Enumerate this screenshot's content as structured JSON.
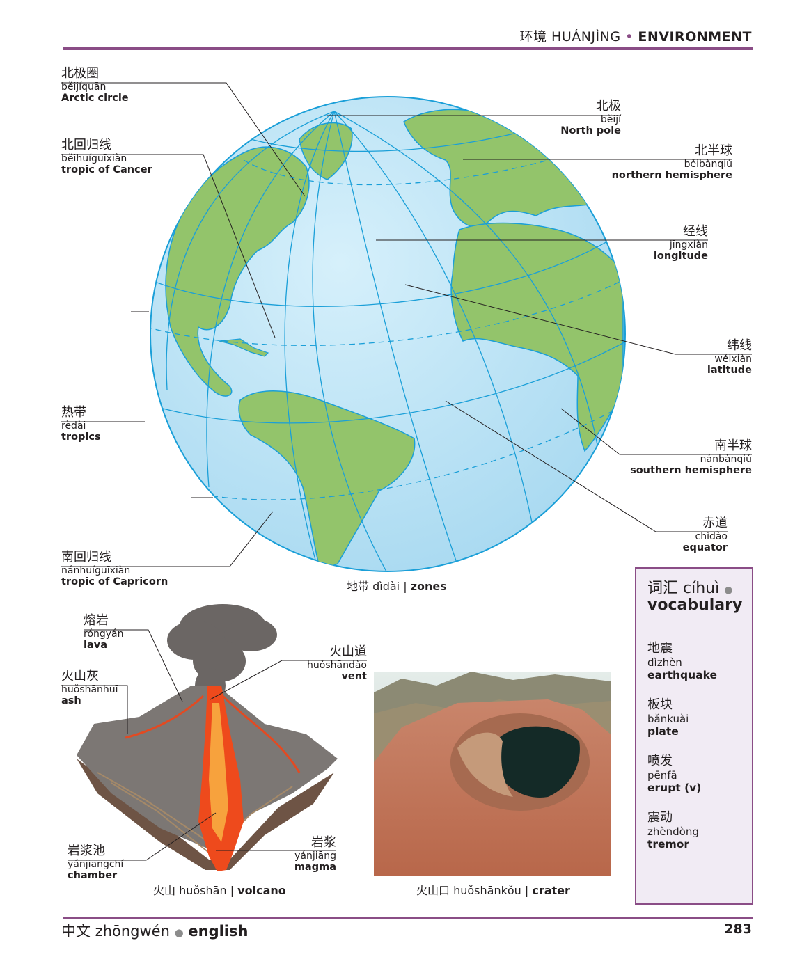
{
  "header": {
    "zh": "环境",
    "pinyin": "HUÁNJÌNG",
    "sep": "•",
    "en": "ENVIRONMENT"
  },
  "labels": {
    "arctic": {
      "zh": "北极圈",
      "py": "běijíquān",
      "en": "Arctic circle"
    },
    "cancer": {
      "zh": "北回归线",
      "py": "běihuíguīxiàn",
      "en": "tropic of Cancer"
    },
    "tropics": {
      "zh": "热带",
      "py": "rèdài",
      "en": "tropics"
    },
    "capricorn": {
      "zh": "南回归线",
      "py": "nánhuíguīxiàn",
      "en": "tropic of Capricorn"
    },
    "northpole": {
      "zh": "北极",
      "py": "běijí",
      "en": "North pole"
    },
    "nhemi": {
      "zh": "北半球",
      "py": "běibànqiú",
      "en": "northern hemisphere"
    },
    "longitude": {
      "zh": "经线",
      "py": "jīngxiàn",
      "en": "longitude"
    },
    "latitude": {
      "zh": "纬线",
      "py": "wěixiàn",
      "en": "latitude"
    },
    "shemi": {
      "zh": "南半球",
      "py": "nánbànqiú",
      "en": "southern hemisphere"
    },
    "equator": {
      "zh": "赤道",
      "py": "chìdào",
      "en": "equator"
    },
    "lava": {
      "zh": "熔岩",
      "py": "róngyán",
      "en": "lava"
    },
    "ash": {
      "zh": "火山灰",
      "py": "huǒshānhuī",
      "en": "ash"
    },
    "vent": {
      "zh": "火山道",
      "py": "huǒshāndào",
      "en": "vent"
    },
    "chamber": {
      "zh": "岩浆池",
      "py": "yánjiāngchí",
      "en": "chamber"
    },
    "magma": {
      "zh": "岩浆",
      "py": "yánjiāng",
      "en": "magma"
    }
  },
  "captions": {
    "zones": {
      "zh": "地带 dìdài",
      "sep": "|",
      "en": "zones"
    },
    "volcano": {
      "zh": "火山 huǒshān",
      "sep": "|",
      "en": "volcano"
    },
    "crater": {
      "zh": "火山口 huǒshānkǒu",
      "sep": "|",
      "en": "crater"
    }
  },
  "vocab": {
    "title_zh": "词汇 cíhuì",
    "dot": "●",
    "title_en": "vocabulary",
    "items": [
      {
        "zh": "地震",
        "py": "dìzhèn",
        "en": "earthquake"
      },
      {
        "zh": "板块",
        "py": "bǎnkuài",
        "en": "plate"
      },
      {
        "zh": "喷发",
        "py": "pēnfā",
        "en": "erupt (v)"
      },
      {
        "zh": "震动",
        "py": "zhèndòng",
        "en": "tremor"
      }
    ]
  },
  "footer": {
    "zh": "中文 zhōngwén",
    "dot": "●",
    "en": "english",
    "page": "283"
  },
  "colors": {
    "accent": "#8a4d86",
    "ocean": "#c3e6f7",
    "land": "#93c46b",
    "gridline": "#1a9fd8"
  }
}
